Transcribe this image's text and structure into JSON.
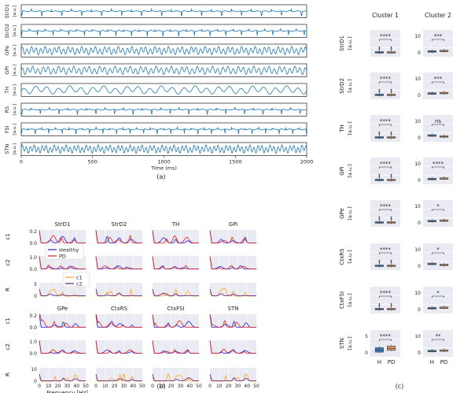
{
  "panel_labels": {
    "a": "(a)",
    "b": "(b)",
    "c": "(c)"
  },
  "chart_data": [
    {
      "id": "a",
      "type": "line",
      "xlabel": "Time (ms)",
      "ylabel": "[a.u.]",
      "xlim": [
        0,
        2000
      ],
      "xticks": [
        0,
        500,
        1000,
        1500,
        2000
      ],
      "color": "#1f77b4",
      "series": [
        {
          "name": "StrD1",
          "period_ms": 140,
          "pattern": "flat-spiky"
        },
        {
          "name": "StrD2",
          "period_ms": 110,
          "pattern": "flat-spiky"
        },
        {
          "name": "GPe",
          "period_ms": 32,
          "pattern": "oscillatory"
        },
        {
          "name": "GPi",
          "period_ms": 36,
          "pattern": "oscillatory"
        },
        {
          "name": "TH",
          "period_ms": 80,
          "pattern": "oscillatory"
        },
        {
          "name": "RS",
          "period_ms": 130,
          "pattern": "flat-spiky"
        },
        {
          "name": "FSI",
          "period_ms": 95,
          "pattern": "flat-spiky"
        },
        {
          "name": "STN",
          "period_ms": 28,
          "pattern": "oscillatory"
        }
      ]
    },
    {
      "id": "b",
      "type": "line",
      "xlabel": "Frequency [Hz]",
      "xlim": [
        0,
        50
      ],
      "xticks": [
        0,
        10,
        20,
        30,
        40,
        50
      ],
      "legend_top": {
        "placement": "inside-left",
        "entries": [
          {
            "name": "Healthy",
            "color": "#1f1fe6"
          },
          {
            "name": "PD",
            "color": "#e61a1a"
          }
        ]
      },
      "legend_ratio": {
        "placement": "inside-left",
        "entries": [
          {
            "name": "c1",
            "color": "#ffa31a"
          },
          {
            "name": "c2",
            "color": "#5a1a8a"
          }
        ]
      },
      "groups": [
        {
          "columns": [
            "StrD1",
            "StrD2",
            "TH",
            "GPi"
          ],
          "rows": [
            {
              "label": "c1",
              "yticks": [
                "0.0",
                "0.2"
              ]
            },
            {
              "label": "c2",
              "yticks": [
                "0.0",
                "1.0"
              ]
            },
            {
              "label": "R",
              "yticks": [
                "0",
                "5"
              ]
            }
          ]
        },
        {
          "columns": [
            "GPe",
            "CtxRS",
            "CtxFSI",
            "STN"
          ],
          "rows": [
            {
              "label": "c1",
              "yticks": [
                "0.0",
                "0.2"
              ]
            },
            {
              "label": "c2",
              "yticks": [
                "0.0",
                "1.0"
              ]
            },
            {
              "label": "R",
              "yticks": [
                "0",
                "10"
              ]
            }
          ]
        }
      ]
    },
    {
      "id": "c",
      "type": "box",
      "column_titles": [
        "Cluster 1",
        "Cluster 2"
      ],
      "ylabel_unit": "[a.u.]",
      "categories": [
        "H",
        "PD"
      ],
      "colors": {
        "H": "#3a78b4",
        "PD": "#d0906a"
      },
      "rows": [
        {
          "region": "StrD1",
          "cluster1": {
            "sig": "****",
            "yticks": []
          },
          "cluster2": {
            "sig": "***",
            "yticks": [
              "0",
              "10"
            ]
          }
        },
        {
          "region": "StrD2",
          "cluster1": {
            "sig": "****",
            "yticks": []
          },
          "cluster2": {
            "sig": "***",
            "yticks": [
              "0",
              "10"
            ]
          }
        },
        {
          "region": "TH",
          "cluster1": {
            "sig": "****",
            "yticks": []
          },
          "cluster2": {
            "sig": "ns",
            "yticks": [
              "0",
              "10"
            ]
          }
        },
        {
          "region": "GPi",
          "cluster1": {
            "sig": "****",
            "yticks": []
          },
          "cluster2": {
            "sig": "****",
            "yticks": [
              "0",
              "10"
            ]
          }
        },
        {
          "region": "GPe",
          "cluster1": {
            "sig": "****",
            "yticks": []
          },
          "cluster2": {
            "sig": "*",
            "yticks": [
              "0",
              "10"
            ]
          }
        },
        {
          "region": "CtxRS",
          "cluster1": {
            "sig": "****",
            "yticks": []
          },
          "cluster2": {
            "sig": "*",
            "yticks": [
              "0",
              "10"
            ]
          }
        },
        {
          "region": "CtxFSI",
          "cluster1": {
            "sig": "****",
            "yticks": []
          },
          "cluster2": {
            "sig": "*",
            "yticks": [
              "0",
              "10"
            ]
          }
        },
        {
          "region": "STN",
          "cluster1": {
            "sig": "****",
            "yticks": [
              "0",
              "5"
            ]
          },
          "cluster2": {
            "sig": "**",
            "yticks": [
              "0",
              "10"
            ]
          }
        }
      ]
    }
  ]
}
